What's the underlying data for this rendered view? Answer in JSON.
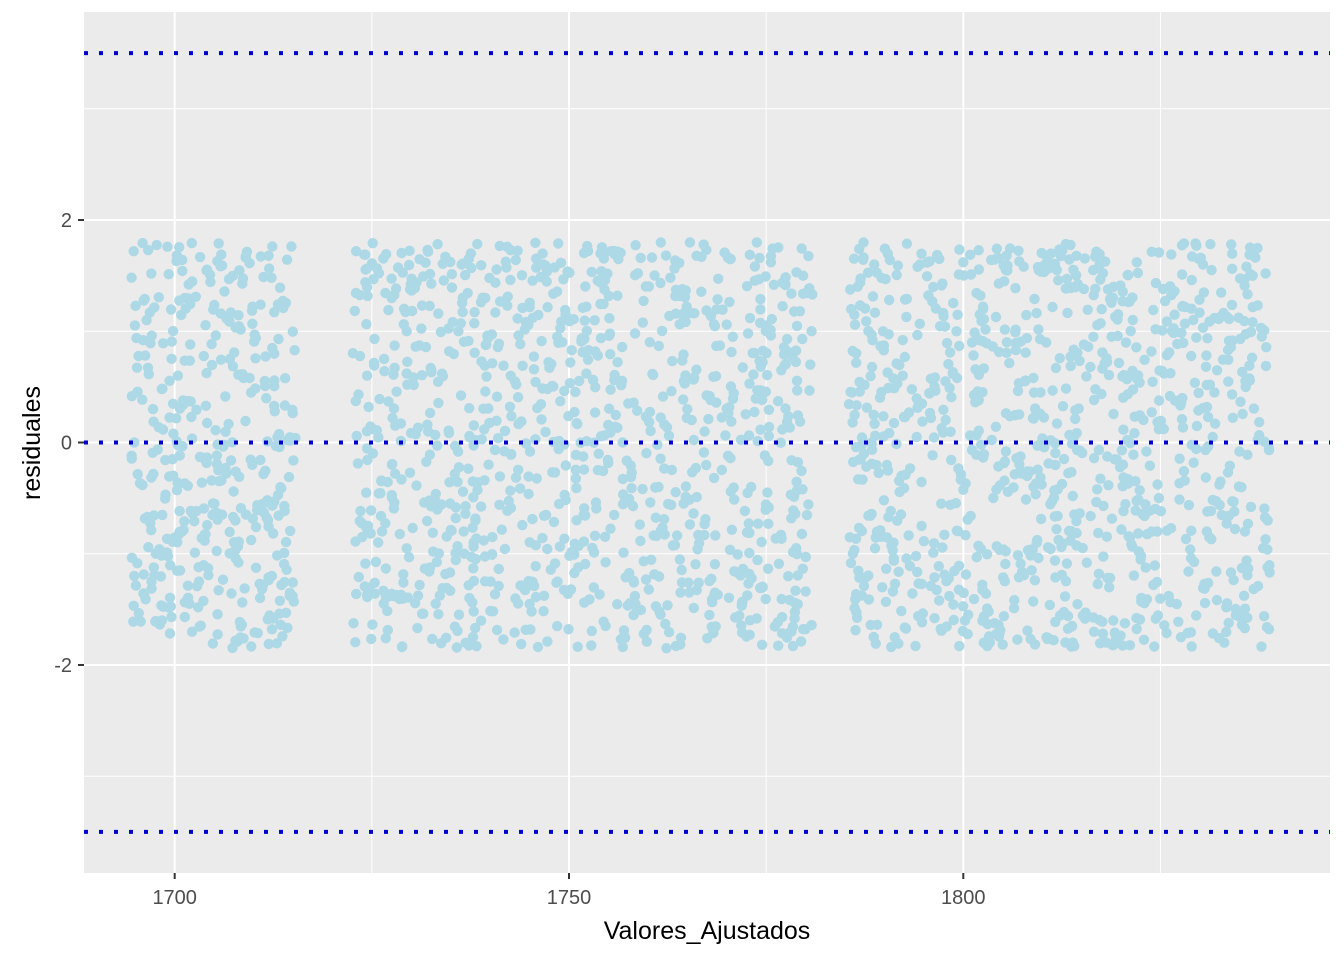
{
  "chart_data": {
    "type": "scatter",
    "xlabel": "Valores_Ajustados",
    "ylabel": "residuales",
    "xlim": [
      1688.5,
      1846.5
    ],
    "ylim": [
      -3.87,
      3.87
    ],
    "x_ticks": [
      1700,
      1750,
      1800
    ],
    "y_ticks": [
      -2,
      0,
      2
    ],
    "x_tick_labels": [
      "1700",
      "1750",
      "1800"
    ],
    "y_tick_labels": [
      "-2",
      "0",
      "2"
    ],
    "grid": true,
    "legend": "none",
    "reference_lines": [
      {
        "y": 3.5,
        "style": "dotted",
        "color": "#0000CD"
      },
      {
        "y": 0,
        "style": "dotted",
        "color": "#0000CD"
      },
      {
        "y": -3.5,
        "style": "dotted",
        "color": "#0000CD"
      }
    ],
    "series": [
      {
        "color": "#ADD8E6",
        "x_clusters": [
          [
            1694.5,
            1715.5
          ],
          [
            1722.5,
            1781
          ],
          [
            1785.5,
            1839
          ]
        ],
        "y_range": [
          -1.85,
          1.8
        ],
        "point_count": 2400,
        "points": [
          [
            1694.8,
            1.72
          ],
          [
            1696.0,
            0.92
          ],
          [
            1697.6,
            -1.0
          ],
          [
            1699.6,
            -1.57
          ],
          [
            1701.3,
            1.3
          ],
          [
            1703.2,
            -0.13
          ],
          [
            1705.4,
            1.63
          ],
          [
            1707.7,
            -0.7
          ],
          [
            1709.5,
            0.58
          ],
          [
            1711.2,
            -1.28
          ],
          [
            1713.8,
            1.22
          ],
          [
            1715.1,
            -1.43
          ],
          [
            1723.0,
            1.72
          ],
          [
            1726.3,
            -0.8
          ],
          [
            1729.5,
            0.52
          ],
          [
            1733.1,
            -1.45
          ],
          [
            1736.4,
            1.6
          ],
          [
            1739.8,
            -0.2
          ],
          [
            1742.6,
            1.73
          ],
          [
            1745.1,
            -1.68
          ],
          [
            1748.5,
            0.95
          ],
          [
            1751.2,
            -0.93
          ],
          [
            1754.0,
            1.7
          ],
          [
            1756.8,
            0.0
          ],
          [
            1759.5,
            -1.72
          ],
          [
            1762.3,
            1.68
          ],
          [
            1765.0,
            0.3
          ],
          [
            1767.8,
            -1.55
          ],
          [
            1770.5,
            1.65
          ],
          [
            1773.1,
            -0.4
          ],
          [
            1775.6,
            1.62
          ],
          [
            1778.2,
            -1.7
          ],
          [
            1780.6,
            0.7
          ],
          [
            1786.0,
            -1.0
          ],
          [
            1788.7,
            1.6
          ],
          [
            1791.3,
            -1.75
          ],
          [
            1794.5,
            1.6
          ],
          [
            1797.2,
            -0.55
          ],
          [
            1800.0,
            1.62
          ],
          [
            1802.6,
            -1.8
          ],
          [
            1805.4,
            1.55
          ],
          [
            1808.1,
            -0.3
          ],
          [
            1811.0,
            1.6
          ],
          [
            1813.8,
            -1.65
          ],
          [
            1816.5,
            0.95
          ],
          [
            1819.3,
            -1.78
          ],
          [
            1822.0,
            1.62
          ],
          [
            1824.8,
            -0.5
          ],
          [
            1827.6,
            -1.75
          ],
          [
            1830.4,
            1.6
          ],
          [
            1833.1,
            -1.8
          ],
          [
            1835.9,
            1.58
          ],
          [
            1838.6,
            -0.7
          ]
        ]
      }
    ]
  }
}
